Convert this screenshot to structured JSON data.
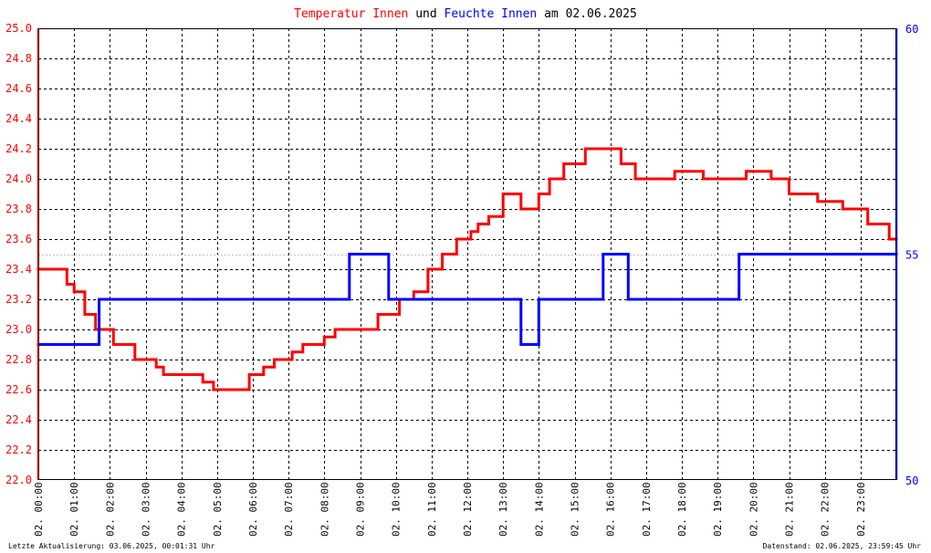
{
  "title": {
    "part1": "Temperatur Innen",
    "part2": " und ",
    "part3": "Feuchte Innen",
    "part4": " am 02.06.2025"
  },
  "footer": {
    "left": "Letzte Aktualisierung: 03.06.2025, 00:01:31 Uhr",
    "right": "Datenstand: 02.06.2025, 23:59:45 Uhr"
  },
  "colors": {
    "temperature": "#ff0000",
    "humidity": "#0000ff",
    "grid": "#000000",
    "ref_line": "#c0c0c0"
  },
  "chart_data": {
    "type": "line",
    "title": "Temperatur Innen und Feuchte Innen am 02.06.2025",
    "grid": true,
    "x_axis": {
      "range_hours": [
        0,
        24
      ],
      "tick_labels": [
        "02. 00:00",
        "02. 01:00",
        "02. 02:00",
        "02. 03:00",
        "02. 04:00",
        "02. 05:00",
        "02. 06:00",
        "02. 07:00",
        "02. 08:00",
        "02. 09:00",
        "02. 10:00",
        "02. 11:00",
        "02. 12:00",
        "02. 13:00",
        "02. 14:00",
        "02. 15:00",
        "02. 16:00",
        "02. 17:00",
        "02. 18:00",
        "02. 19:00",
        "02. 20:00",
        "02. 21:00",
        "02. 22:00",
        "02. 23:00"
      ]
    },
    "y_left": {
      "range": [
        22.0,
        25.0
      ],
      "tick_labels": [
        "22.0",
        "22.2",
        "22.4",
        "22.6",
        "22.8",
        "23.0",
        "23.2",
        "23.4",
        "23.6",
        "23.8",
        "24.0",
        "24.2",
        "24.4",
        "24.6",
        "24.8",
        "25.0"
      ]
    },
    "y_right": {
      "range": [
        50,
        60
      ],
      "tick_labels": [
        "50",
        "55",
        "60"
      ]
    },
    "series": [
      {
        "name": "Temperatur Innen",
        "axis": "left",
        "color": "#ff0000",
        "points": [
          [
            0.0,
            23.4
          ],
          [
            0.8,
            23.4
          ],
          [
            0.8,
            23.3
          ],
          [
            1.0,
            23.3
          ],
          [
            1.0,
            23.25
          ],
          [
            1.3,
            23.25
          ],
          [
            1.3,
            23.1
          ],
          [
            1.6,
            23.1
          ],
          [
            1.6,
            23.0
          ],
          [
            2.1,
            23.0
          ],
          [
            2.1,
            22.9
          ],
          [
            2.7,
            22.9
          ],
          [
            2.7,
            22.8
          ],
          [
            3.3,
            22.8
          ],
          [
            3.3,
            22.75
          ],
          [
            3.5,
            22.75
          ],
          [
            3.5,
            22.7
          ],
          [
            4.6,
            22.7
          ],
          [
            4.6,
            22.65
          ],
          [
            4.9,
            22.65
          ],
          [
            4.9,
            22.6
          ],
          [
            5.9,
            22.6
          ],
          [
            5.9,
            22.7
          ],
          [
            6.3,
            22.7
          ],
          [
            6.3,
            22.75
          ],
          [
            6.6,
            22.75
          ],
          [
            6.6,
            22.8
          ],
          [
            7.1,
            22.8
          ],
          [
            7.1,
            22.85
          ],
          [
            7.4,
            22.85
          ],
          [
            7.4,
            22.9
          ],
          [
            8.0,
            22.9
          ],
          [
            8.0,
            22.95
          ],
          [
            8.3,
            22.95
          ],
          [
            8.3,
            23.0
          ],
          [
            9.5,
            23.0
          ],
          [
            9.5,
            23.1
          ],
          [
            10.1,
            23.1
          ],
          [
            10.1,
            23.2
          ],
          [
            10.5,
            23.2
          ],
          [
            10.5,
            23.25
          ],
          [
            10.9,
            23.25
          ],
          [
            10.9,
            23.4
          ],
          [
            11.3,
            23.4
          ],
          [
            11.3,
            23.5
          ],
          [
            11.7,
            23.5
          ],
          [
            11.7,
            23.6
          ],
          [
            12.1,
            23.6
          ],
          [
            12.1,
            23.65
          ],
          [
            12.3,
            23.65
          ],
          [
            12.3,
            23.7
          ],
          [
            12.6,
            23.7
          ],
          [
            12.6,
            23.75
          ],
          [
            13.0,
            23.75
          ],
          [
            13.0,
            23.9
          ],
          [
            13.5,
            23.9
          ],
          [
            13.5,
            23.8
          ],
          [
            14.0,
            23.8
          ],
          [
            14.0,
            23.9
          ],
          [
            14.3,
            23.9
          ],
          [
            14.3,
            24.0
          ],
          [
            14.7,
            24.0
          ],
          [
            14.7,
            24.1
          ],
          [
            15.3,
            24.1
          ],
          [
            15.3,
            24.2
          ],
          [
            16.3,
            24.2
          ],
          [
            16.3,
            24.1
          ],
          [
            16.7,
            24.1
          ],
          [
            16.7,
            24.0
          ],
          [
            17.8,
            24.0
          ],
          [
            17.8,
            24.05
          ],
          [
            18.6,
            24.05
          ],
          [
            18.6,
            24.0
          ],
          [
            19.8,
            24.0
          ],
          [
            19.8,
            24.05
          ],
          [
            20.5,
            24.05
          ],
          [
            20.5,
            24.0
          ],
          [
            21.0,
            24.0
          ],
          [
            21.0,
            23.9
          ],
          [
            21.8,
            23.9
          ],
          [
            21.8,
            23.85
          ],
          [
            22.5,
            23.85
          ],
          [
            22.5,
            23.8
          ],
          [
            23.2,
            23.8
          ],
          [
            23.2,
            23.7
          ],
          [
            23.8,
            23.7
          ],
          [
            23.8,
            23.6
          ],
          [
            24.0,
            23.6
          ]
        ]
      },
      {
        "name": "Feuchte Innen",
        "axis": "right",
        "color": "#0000ff",
        "points": [
          [
            0.0,
            53.0
          ],
          [
            1.7,
            53.0
          ],
          [
            1.7,
            54.0
          ],
          [
            8.7,
            54.0
          ],
          [
            8.7,
            55.0
          ],
          [
            9.8,
            55.0
          ],
          [
            9.8,
            54.0
          ],
          [
            13.5,
            54.0
          ],
          [
            13.5,
            53.0
          ],
          [
            14.0,
            53.0
          ],
          [
            14.0,
            54.0
          ],
          [
            15.8,
            54.0
          ],
          [
            15.8,
            55.0
          ],
          [
            16.5,
            55.0
          ],
          [
            16.5,
            54.0
          ],
          [
            19.6,
            54.0
          ],
          [
            19.6,
            55.0
          ],
          [
            24.0,
            55.0
          ]
        ]
      }
    ],
    "reference_line": {
      "axis": "right",
      "value": 55
    }
  }
}
